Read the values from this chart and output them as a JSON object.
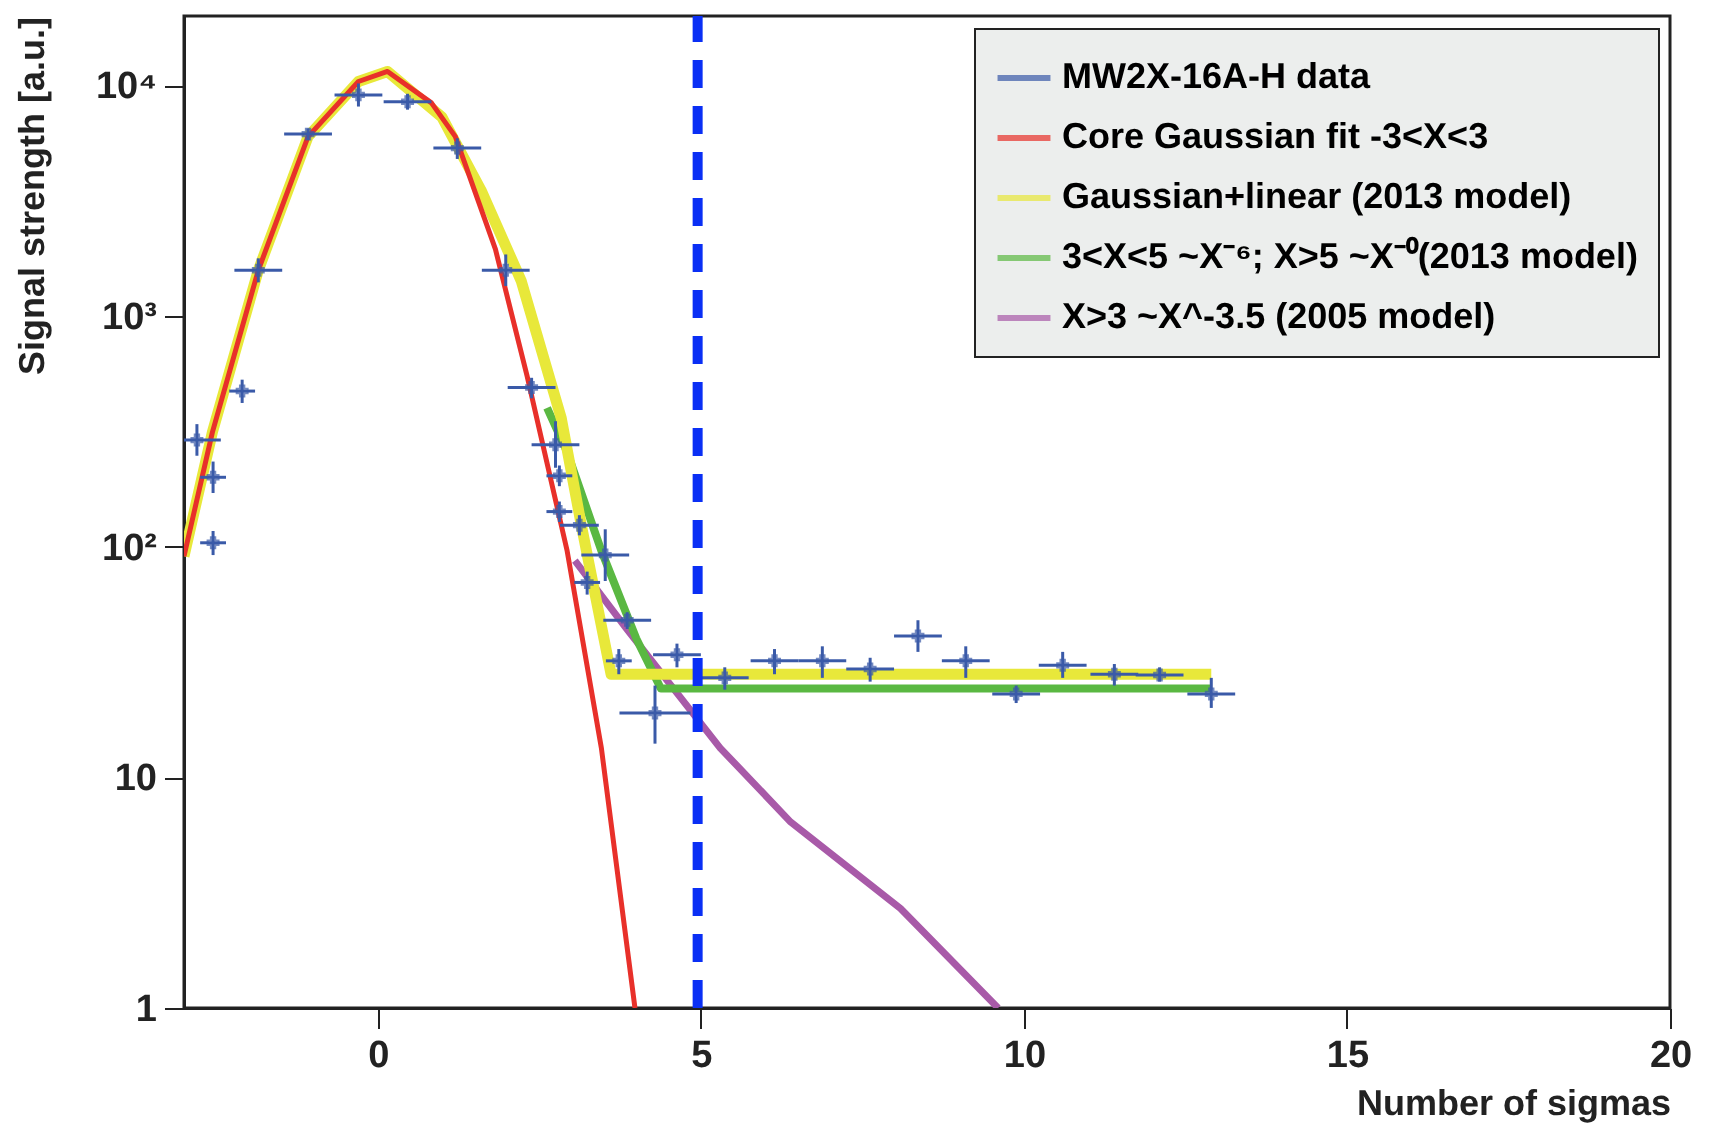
{
  "chart_data": {
    "type": "line",
    "xlabel": "Number of sigmas",
    "ylabel": "Signal strength [a.u.]",
    "xlim": [
      -3,
      20
    ],
    "xticks": [
      0,
      5,
      10,
      15,
      20
    ],
    "ylim": [
      1,
      20000
    ],
    "yticks": [
      1,
      10,
      {
        "value": 100,
        "label": "10²"
      },
      {
        "value": 1000,
        "label": "10³"
      },
      {
        "value": 10000,
        "label": "10⁴"
      }
    ],
    "log": "y",
    "grid": false,
    "legend": "top right",
    "line_style": "solid",
    "series": [
      {
        "name": "MW2X-16A-H data",
        "type": "scatter",
        "marker": "cross",
        "color": "#3a5aa8",
        "x": [
          -2.8,
          -2.55,
          -2.55,
          -2.1,
          -1.85,
          -1.08,
          -0.3,
          0.46,
          1.23,
          1.98,
          2.38,
          2.75,
          2.81,
          2.81,
          3.12,
          3.52,
          3.24,
          3.86,
          3.73,
          4.63,
          4.29,
          5.37,
          6.14,
          6.88,
          7.62,
          8.36,
          9.1,
          9.88,
          10.6,
          11.4,
          12.1,
          12.9
        ],
        "values": [
          290,
          200,
          104,
          473,
          1580,
          6150,
          9100,
          8500,
          5350,
          1580,
          490,
          277,
          203,
          142,
          124,
          92,
          70,
          48,
          32,
          34,
          19,
          27,
          32,
          32,
          29.5,
          41,
          32,
          23,
          30.6,
          28,
          27.8,
          23
        ],
        "errors": [
          [
            248,
            340
          ],
          [
            171,
            234
          ],
          [
            92,
            117
          ],
          [
            420,
            530
          ],
          [
            1400,
            1780
          ],
          [
            5800,
            6500
          ],
          [
            8100,
            10200
          ],
          [
            7850,
            9200
          ],
          [
            4800,
            5900
          ],
          [
            1350,
            1850
          ],
          [
            440,
            540
          ],
          [
            220,
            350
          ],
          [
            183,
            225
          ],
          [
            128,
            157
          ],
          [
            112,
            137
          ],
          [
            71,
            119
          ],
          [
            62,
            78
          ],
          [
            44,
            52
          ],
          [
            28,
            36
          ],
          [
            30,
            38
          ],
          [
            14,
            25
          ],
          [
            24,
            30
          ],
          [
            28,
            36
          ],
          [
            27,
            37
          ],
          [
            26,
            33
          ],
          [
            35,
            48
          ],
          [
            27,
            37
          ],
          [
            21,
            25
          ],
          [
            27,
            35
          ],
          [
            25,
            31
          ],
          [
            26,
            30
          ],
          [
            20,
            27
          ]
        ],
        "xerrors": [
          0.37,
          0.2,
          0.2,
          0.2,
          0.37,
          0.37,
          0.37,
          0.37,
          0.37,
          0.37,
          0.37,
          0.37,
          0.2,
          0.2,
          0.3,
          0.37,
          0.2,
          0.37,
          0.2,
          0.37,
          0.55,
          0.37,
          0.37,
          0.37,
          0.37,
          0.37,
          0.37,
          0.37,
          0.37,
          0.37,
          0.37,
          0.37
        ]
      },
      {
        "name": "Core Gaussian fit -3<X<3",
        "color": "#e8302a",
        "x": [
          -3,
          -2.56,
          -1.85,
          -1.08,
          -0.3,
          0.15,
          0.83,
          1.2,
          1.82,
          2.31,
          2.93,
          3.46,
          3.98
        ],
        "values": [
          91,
          314,
          1580,
          6000,
          10400,
          11500,
          8400,
          6000,
          1950,
          550,
          96,
          13.4,
          1
        ]
      },
      {
        "name": "Gaussian+linear   (2013 model)",
        "color": "#e8e83a",
        "x": [
          -3,
          -2.56,
          -1.85,
          -1.08,
          -0.3,
          0.15,
          0.99,
          1.6,
          2.22,
          2.84,
          3.15,
          3.61,
          12.9
        ],
        "values": [
          91,
          314,
          1580,
          6000,
          10400,
          11500,
          7300,
          3500,
          1420,
          360,
          124,
          28,
          28
        ]
      },
      {
        "name": "3<X<5 ~X⁻⁶; X>5 ~X⁻⁰(2013 model)",
        "color": "#5ab842",
        "x": [
          2.62,
          2.93,
          3.46,
          4.0,
          4.38,
          12.9
        ],
        "values": [
          400,
          257,
          96,
          40,
          24.3,
          24.3
        ]
      },
      {
        "name": "X>3 ~X^-3.5 (2005 model)",
        "color": "#a85aa8",
        "x": [
          3.05,
          3.86,
          5.3,
          6.39,
          8.09,
          9.6
        ],
        "values": [
          87,
          43.7,
          13.4,
          6.4,
          2.7,
          1
        ]
      }
    ],
    "ref_lines": [
      {
        "axis": "x",
        "value": 4.95,
        "color": "#0a2ff5",
        "line_style": "dashed"
      }
    ]
  }
}
